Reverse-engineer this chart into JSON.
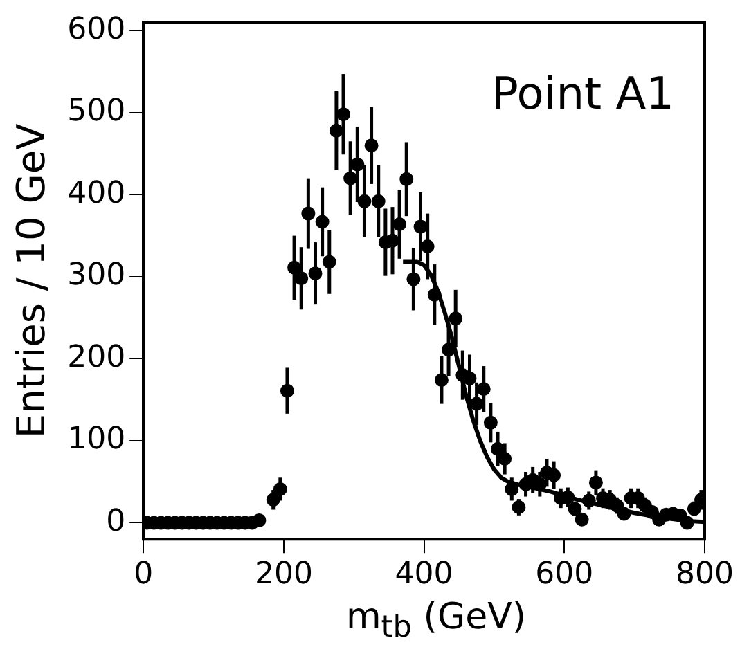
{
  "chart_data": {
    "type": "scatter",
    "xlabel": "m$_{tb}$ (GeV)",
    "ylabel": "Entries / 10 GeV",
    "annotations": [
      "Point A1"
    ],
    "xlim": [
      0,
      800
    ],
    "xticks": [
      0,
      200,
      400,
      600,
      800
    ],
    "ylim": [
      -20,
      610
    ],
    "yticks": [
      0,
      100,
      200,
      300,
      400,
      500,
      600
    ],
    "grid": false,
    "marker": "circle",
    "series": [
      {
        "color": "#000000",
        "x": [
          5,
          15,
          25,
          35,
          45,
          55,
          65,
          75,
          85,
          95,
          105,
          115,
          125,
          135,
          145,
          155,
          165,
          185,
          195,
          205,
          215,
          225,
          235,
          245,
          255,
          265,
          275,
          285,
          295,
          305,
          315,
          325,
          335,
          345,
          355,
          365,
          375,
          385,
          395,
          405,
          415,
          425,
          435,
          445,
          455,
          465,
          475,
          485,
          495,
          505,
          515,
          525,
          535,
          545,
          555,
          565,
          575,
          585,
          595,
          605,
          615,
          625,
          635,
          645,
          655,
          665,
          675,
          685,
          695,
          705,
          715,
          725,
          735,
          745,
          755,
          765,
          775,
          785,
          795
        ],
        "values": [
          0,
          0,
          0,
          0,
          0,
          0,
          0,
          0,
          0,
          0,
          0,
          0,
          0,
          0,
          0,
          0,
          3,
          28,
          41,
          161,
          311,
          298,
          377,
          304,
          367,
          318,
          478,
          498,
          420,
          437,
          392,
          460,
          392,
          342,
          344,
          364,
          419,
          297,
          361,
          337,
          278,
          174,
          211,
          249,
          180,
          176,
          145,
          163,
          122,
          90,
          78,
          41,
          19,
          47,
          52,
          47,
          61,
          58,
          30,
          31,
          17,
          4,
          27,
          49,
          30,
          28,
          21,
          11,
          30,
          30,
          21,
          13,
          4,
          10,
          11,
          9,
          0,
          17,
          28
        ],
        "errors": [
          null,
          null,
          null,
          null,
          null,
          null,
          null,
          null,
          null,
          null,
          null,
          null,
          null,
          null,
          null,
          null,
          null,
          12,
          14,
          28,
          39,
          38,
          43,
          38,
          42,
          39,
          48,
          49,
          45,
          46,
          44,
          47,
          44,
          41,
          41,
          42,
          45,
          38,
          42,
          40,
          37,
          29,
          32,
          35,
          30,
          29,
          26,
          28,
          24,
          21,
          19,
          14,
          10,
          15,
          16,
          15,
          17,
          17,
          12,
          12,
          9,
          4,
          11,
          15,
          12,
          12,
          10,
          7,
          12,
          12,
          10,
          8,
          4,
          7,
          7,
          7,
          null,
          9,
          12
        ]
      },
      {
        "type": "line",
        "color": "#000000",
        "marker": "none",
        "x": [
          370,
          390,
          400,
          410,
          420,
          430,
          440,
          450,
          460,
          470,
          480,
          490,
          500,
          510,
          520,
          540,
          560,
          580,
          600,
          620,
          640,
          660,
          680,
          700,
          720,
          740,
          760,
          780,
          800
        ],
        "values": [
          318,
          318,
          314,
          302,
          282,
          255,
          225,
          190,
          155,
          125,
          100,
          80,
          65,
          55,
          50,
          45,
          42,
          38,
          33,
          28,
          24,
          20,
          16,
          12,
          9,
          6,
          4,
          2,
          1
        ]
      }
    ]
  }
}
